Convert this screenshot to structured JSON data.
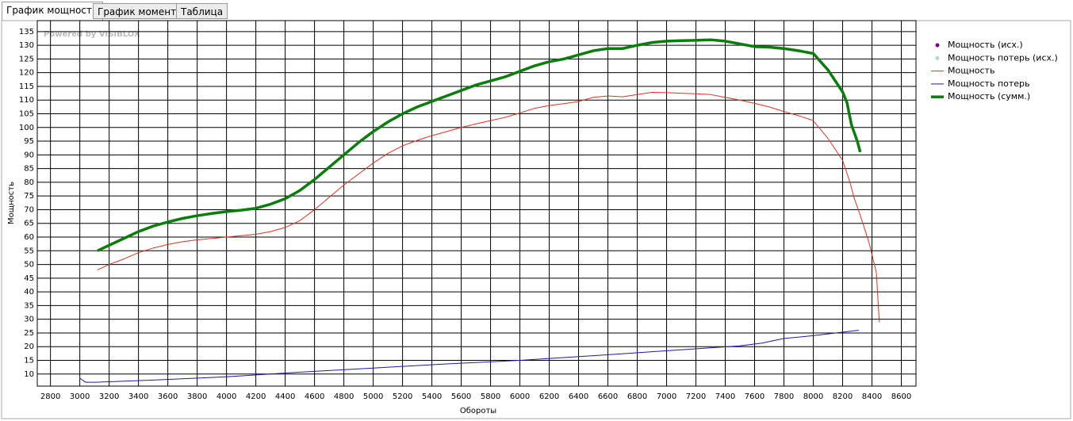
{
  "tabs": [
    "График мощности",
    "График момента",
    "Таблица"
  ],
  "chart_data": {
    "type": "line",
    "watermark": "Powered by VISIBLOX",
    "xlabel": "Обороты",
    "ylabel": "Мощность",
    "xlim": [
      2710,
      8700
    ],
    "ylim": [
      5.6,
      139
    ],
    "xticks": [
      2800,
      3000,
      3200,
      3400,
      3600,
      3800,
      4000,
      4200,
      4400,
      4600,
      4800,
      5000,
      5200,
      5400,
      5600,
      5800,
      6000,
      6200,
      6400,
      6600,
      6800,
      7000,
      7200,
      7400,
      7600,
      7800,
      8000,
      8200,
      8400,
      8600
    ],
    "yticks": [
      10,
      15,
      20,
      25,
      30,
      35,
      40,
      45,
      50,
      55,
      60,
      65,
      70,
      75,
      80,
      85,
      90,
      95,
      100,
      105,
      110,
      115,
      120,
      125,
      130,
      135
    ],
    "grid": true,
    "legend": "right",
    "series": [
      {
        "name": "Мощность (исх.)",
        "color": "#800080",
        "style": "marker",
        "x": [],
        "values": []
      },
      {
        "name": "Мощность потерь (исх.)",
        "color": "#a8dccb",
        "style": "marker",
        "x": [],
        "values": []
      },
      {
        "name": "Мощность",
        "color": "#e0301e",
        "style": "line",
        "width": 1,
        "x": [
          3120,
          3200,
          3300,
          3400,
          3500,
          3600,
          3700,
          3800,
          3900,
          4000,
          4100,
          4200,
          4300,
          4400,
          4500,
          4600,
          4700,
          4800,
          4900,
          5000,
          5100,
          5200,
          5300,
          5400,
          5500,
          5600,
          5700,
          5800,
          5900,
          6000,
          6100,
          6200,
          6300,
          6400,
          6500,
          6600,
          6700,
          6800,
          6900,
          7000,
          7100,
          7200,
          7300,
          7400,
          7500,
          7600,
          7700,
          7800,
          7900,
          8000,
          8100,
          8200,
          8250,
          8280,
          8320,
          8380,
          8430,
          8450
        ],
        "values": [
          48,
          50,
          52,
          54.3,
          56,
          57.3,
          58.3,
          59,
          59.5,
          60,
          60.5,
          61,
          62,
          63.5,
          66,
          70,
          74.5,
          79,
          83,
          87,
          90.5,
          93.3,
          95.3,
          97,
          98.5,
          100,
          101.3,
          102.5,
          103.7,
          105.3,
          107,
          108,
          108.7,
          109.5,
          111,
          111.5,
          111.2,
          112,
          112.8,
          112.7,
          112.5,
          112.3,
          112,
          111,
          110,
          108.8,
          107.5,
          105.8,
          104.3,
          102.5,
          96,
          88,
          80,
          74,
          68,
          58,
          47,
          29
        ]
      },
      {
        "name": "Мощность потерь",
        "color": "#1a1aaa",
        "style": "line",
        "width": 1,
        "x": [
          3000,
          3040,
          3100,
          3500,
          4000,
          4500,
          5000,
          5500,
          6000,
          6500,
          7000,
          7500,
          7650,
          7800,
          8000,
          8310
        ],
        "values": [
          8.5,
          7,
          7,
          7.8,
          9,
          10.7,
          12.2,
          13.7,
          15,
          16.7,
          18.5,
          20.3,
          21.3,
          23,
          24,
          26
        ]
      },
      {
        "name": "Мощность (сумм.)",
        "color": "#0a7d0a",
        "style": "line",
        "width": 3.5,
        "x": [
          3120,
          3200,
          3300,
          3400,
          3500,
          3600,
          3700,
          3800,
          3900,
          4000,
          4100,
          4200,
          4300,
          4400,
          4500,
          4600,
          4700,
          4800,
          4900,
          5000,
          5100,
          5200,
          5300,
          5400,
          5500,
          5600,
          5700,
          5800,
          5900,
          6000,
          6100,
          6200,
          6300,
          6400,
          6500,
          6600,
          6700,
          6800,
          6900,
          7000,
          7100,
          7200,
          7300,
          7400,
          7500,
          7600,
          7700,
          7800,
          7900,
          8000,
          8100,
          8200,
          8230,
          8260,
          8300,
          8320
        ],
        "values": [
          55,
          57,
          59.5,
          62,
          64,
          65.5,
          66.8,
          67.8,
          68.6,
          69.3,
          69.8,
          70.5,
          72,
          74,
          77,
          81,
          85.5,
          90,
          94.5,
          98.5,
          102,
          105,
          107.5,
          109.5,
          111.5,
          113.5,
          115.5,
          117,
          118.5,
          120.5,
          122.5,
          124,
          125,
          126.5,
          128,
          128.8,
          128.8,
          130,
          131,
          131.5,
          131.7,
          131.8,
          132,
          131.5,
          130.5,
          129.5,
          129.3,
          128.8,
          128,
          127,
          121,
          113,
          109,
          101,
          95,
          91
        ]
      }
    ]
  }
}
